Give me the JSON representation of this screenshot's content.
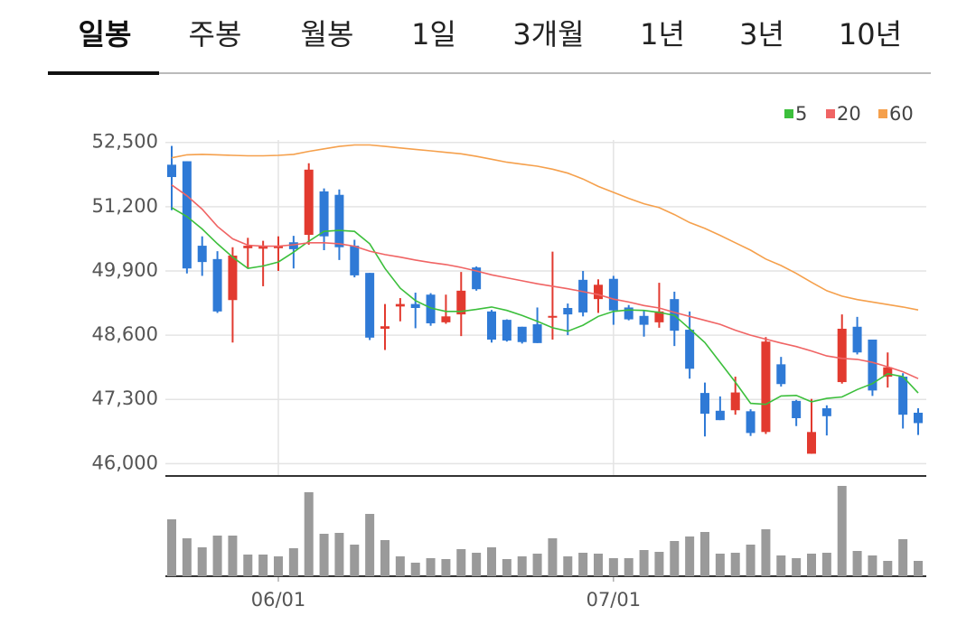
{
  "tabs": {
    "items": [
      "일봉",
      "주봉",
      "월봉",
      "1일",
      "3개월",
      "1년",
      "3년",
      "10년"
    ],
    "selected": 0
  },
  "chart_data": {
    "type": "candlestick",
    "categories": [
      null,
      null,
      null,
      null,
      null,
      null,
      null,
      "06/01",
      null,
      null,
      null,
      null,
      null,
      null,
      null,
      null,
      null,
      null,
      null,
      null,
      null,
      null,
      null,
      null,
      null,
      null,
      null,
      null,
      null,
      "07/01",
      null,
      null,
      null,
      null,
      null,
      null,
      null,
      null,
      null,
      null,
      null,
      null,
      null,
      null,
      null,
      null,
      null,
      null,
      null,
      null
    ],
    "open": [
      52050,
      52120,
      50410,
      50140,
      49310,
      50360,
      50350,
      50360,
      50480,
      50630,
      51510,
      51440,
      50410,
      49860,
      48730,
      49180,
      49230,
      49420,
      48860,
      49020,
      49970,
      49080,
      48910,
      48770,
      48820,
      48960,
      49150,
      49720,
      49330,
      49740,
      49160,
      48990,
      48860,
      49330,
      48710,
      47430,
      47070,
      47080,
      47060,
      46640,
      48010,
      47270,
      46200,
      47120,
      47650,
      48770,
      48510,
      47760,
      47760,
      47030
    ],
    "high": [
      52430,
      52120,
      50600,
      50300,
      50380,
      50570,
      50510,
      50600,
      50610,
      52080,
      51570,
      51550,
      50530,
      49860,
      49230,
      49350,
      49460,
      49450,
      49420,
      49880,
      49990,
      49110,
      48920,
      48770,
      49160,
      50290,
      49240,
      49900,
      49730,
      49800,
      49210,
      49110,
      49660,
      49480,
      49080,
      47640,
      47360,
      47760,
      47100,
      48560,
      48160,
      47290,
      47310,
      47180,
      49020,
      48970,
      48510,
      48250,
      47830,
      47120
    ],
    "low": [
      51130,
      49850,
      49800,
      49050,
      48450,
      49950,
      49590,
      49900,
      49950,
      50430,
      50320,
      50120,
      49770,
      48500,
      48300,
      48880,
      48740,
      48790,
      48830,
      48580,
      49500,
      48450,
      48470,
      48430,
      48440,
      48510,
      48600,
      48980,
      49050,
      48810,
      48900,
      48570,
      48750,
      48380,
      47720,
      46550,
      46880,
      46990,
      46560,
      46600,
      47560,
      46760,
      46200,
      46570,
      47620,
      48210,
      47370,
      47540,
      46710,
      46580
    ],
    "close": [
      51800,
      49950,
      50080,
      49080,
      50210,
      50410,
      50400,
      50400,
      50340,
      51950,
      50600,
      50380,
      49810,
      48550,
      48780,
      49230,
      49150,
      48840,
      48980,
      49500,
      49530,
      48510,
      48490,
      48460,
      48440,
      48990,
      49020,
      49060,
      49620,
      49100,
      48920,
      48810,
      49080,
      48690,
      47920,
      47010,
      46880,
      47440,
      46620,
      48470,
      47610,
      46920,
      46640,
      46960,
      48730,
      48250,
      47480,
      47950,
      46990,
      46820
    ],
    "up_color": "#e23a2f",
    "down_color": "#2f7ad6",
    "series": [
      {
        "name": "5",
        "color": "#3cbf3c",
        "values": [
          51180,
          51000,
          50750,
          50450,
          50180,
          49950,
          50000,
          50080,
          50280,
          50500,
          50700,
          50720,
          50700,
          50450,
          49950,
          49550,
          49300,
          49150,
          49080,
          49080,
          49120,
          49170,
          49100,
          49000,
          48880,
          48750,
          48680,
          48800,
          48980,
          49080,
          49110,
          49100,
          49060,
          49000,
          48730,
          48450,
          48050,
          47650,
          47220,
          47200,
          47370,
          47380,
          47250,
          47320,
          47350,
          47500,
          47620,
          47820,
          47760,
          47430
        ]
      },
      {
        "name": "20",
        "color": "#f06464",
        "values": [
          51640,
          51420,
          51150,
          50800,
          50550,
          50420,
          50400,
          50400,
          50430,
          50470,
          50470,
          50450,
          50400,
          50300,
          50230,
          50180,
          50120,
          50070,
          50030,
          49970,
          49900,
          49820,
          49760,
          49700,
          49640,
          49590,
          49540,
          49480,
          49420,
          49330,
          49270,
          49200,
          49150,
          49060,
          48980,
          48900,
          48820,
          48700,
          48600,
          48520,
          48440,
          48370,
          48280,
          48180,
          48130,
          48110,
          48050,
          47960,
          47860,
          47720
        ]
      },
      {
        "name": "60",
        "color": "#f5a04c",
        "values": [
          52190,
          52250,
          52260,
          52250,
          52240,
          52230,
          52230,
          52240,
          52260,
          52320,
          52370,
          52420,
          52450,
          52450,
          52420,
          52390,
          52360,
          52330,
          52300,
          52270,
          52220,
          52160,
          52100,
          52060,
          52020,
          51960,
          51880,
          51760,
          51610,
          51490,
          51370,
          51260,
          51180,
          51040,
          50880,
          50760,
          50620,
          50470,
          50320,
          50140,
          50010,
          49850,
          49670,
          49500,
          49390,
          49320,
          49270,
          49220,
          49170,
          49110
        ]
      }
    ],
    "volume": {
      "color": "#9a9a9a",
      "ylim": [
        0,
        100
      ],
      "values": [
        63,
        42,
        32,
        45,
        45,
        24,
        24,
        22,
        31,
        93,
        47,
        48,
        35,
        69,
        40,
        22,
        15,
        20,
        19,
        30,
        26,
        32,
        19,
        22,
        25,
        42,
        22,
        26,
        25,
        20,
        20,
        29,
        27,
        39,
        44,
        49,
        25,
        26,
        35,
        52,
        23,
        20,
        25,
        26,
        100,
        28,
        23,
        17,
        41,
        17
      ]
    },
    "ylim": [
      45750,
      52550
    ],
    "yticks": [
      {
        "value": 46000,
        "label": "46,000"
      },
      {
        "value": 47300,
        "label": "47,300"
      },
      {
        "value": 48600,
        "label": "48,600"
      },
      {
        "value": 49900,
        "label": "49,900"
      },
      {
        "value": 51200,
        "label": "51,200"
      },
      {
        "value": 52500,
        "label": "52,500"
      }
    ],
    "grid": true
  }
}
